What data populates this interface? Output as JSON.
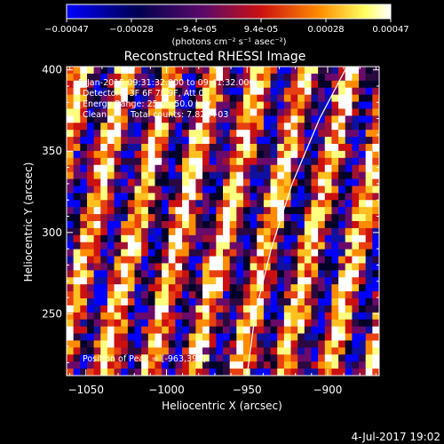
{
  "colorbar": {
    "tick_labels": [
      "-0.00047",
      "-0.00028",
      "-9.4e-05",
      "9.4e-05",
      "0.00028",
      "0.00047"
    ],
    "units_label": "(photons cm⁻² s⁻¹ asec⁻²)",
    "range": [
      -0.00047,
      0.00047
    ],
    "palette": [
      "#0000ff",
      "#000033",
      "#6a0a6a",
      "#cc1010",
      "#ff8c00",
      "#ffff80",
      "#ffffff"
    ]
  },
  "plot": {
    "title": "Reconstructed RHESSI Image",
    "xlabel": "Heliocentric X (arcsec)",
    "ylabel": "Heliocentric Y (arcsec)",
    "xlim": [
      -1062,
      -868
    ],
    "ylim": [
      212,
      402
    ],
    "x_ticks": [
      -1050,
      -1000,
      -950,
      -900
    ],
    "x_tick_labels": [
      "−1050",
      "−1000",
      "−950",
      "−900"
    ],
    "y_ticks": [
      250,
      300,
      350,
      400
    ],
    "y_tick_labels": [
      "250",
      "300",
      "350",
      "400"
    ]
  },
  "annotations": {
    "time_range": "5-Jan-2015 09:31:32.000 to 09:41:32.000",
    "detectors": "Detectors: 3F 6F 7F 9F, Att 0",
    "energy_range": "Energy Range: 25.0 - 50.0 keV",
    "algorithm": "Clean",
    "total_counts": "Total counts: 7.82E+03",
    "peak_position": "Position of Peak = [-963,393]"
  },
  "limb_curve_x_at_y": [
    [
      -950,
      212
    ],
    [
      -945,
      250
    ],
    [
      -935,
      290
    ],
    [
      -922,
      330
    ],
    [
      -905,
      370
    ],
    [
      -888,
      402
    ]
  ],
  "footer": {
    "date": "4-Jul-2017 19:02"
  }
}
